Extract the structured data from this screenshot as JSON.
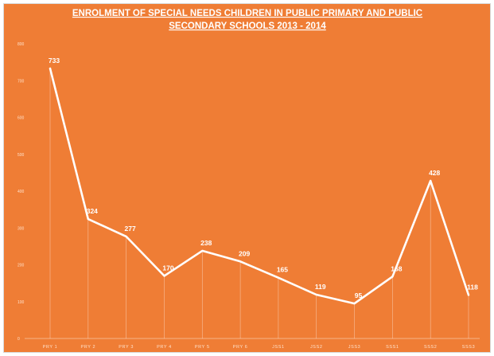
{
  "chart_data": {
    "type": "line",
    "title_lines": [
      "ENROLMENT OF SPECIAL NEEDS CHILDREN IN PUBLIC PRIMARY AND PUBLIC",
      "SECONDARY SCHOOLS 2013 - 2014"
    ],
    "categories": [
      "PRY 1",
      "PRY 2",
      "PRY 3",
      "PRY 4",
      "PRY 5",
      "PRY 6",
      "JSS1",
      "JSS2",
      "JSS3",
      "SSS1",
      "SSS2",
      "SSS3"
    ],
    "values": [
      733,
      324,
      277,
      170,
      238,
      209,
      165,
      119,
      95,
      168,
      428,
      118
    ],
    "yticks": [
      0,
      100,
      200,
      300,
      400,
      500,
      600,
      700,
      800
    ],
    "ylim": [
      0,
      800
    ],
    "xlabel": "",
    "ylabel": "",
    "grid": false,
    "drop_lines": true,
    "colors": {
      "background": "#ef7d35",
      "line": "#ffffff",
      "text": "#ffffff"
    }
  }
}
